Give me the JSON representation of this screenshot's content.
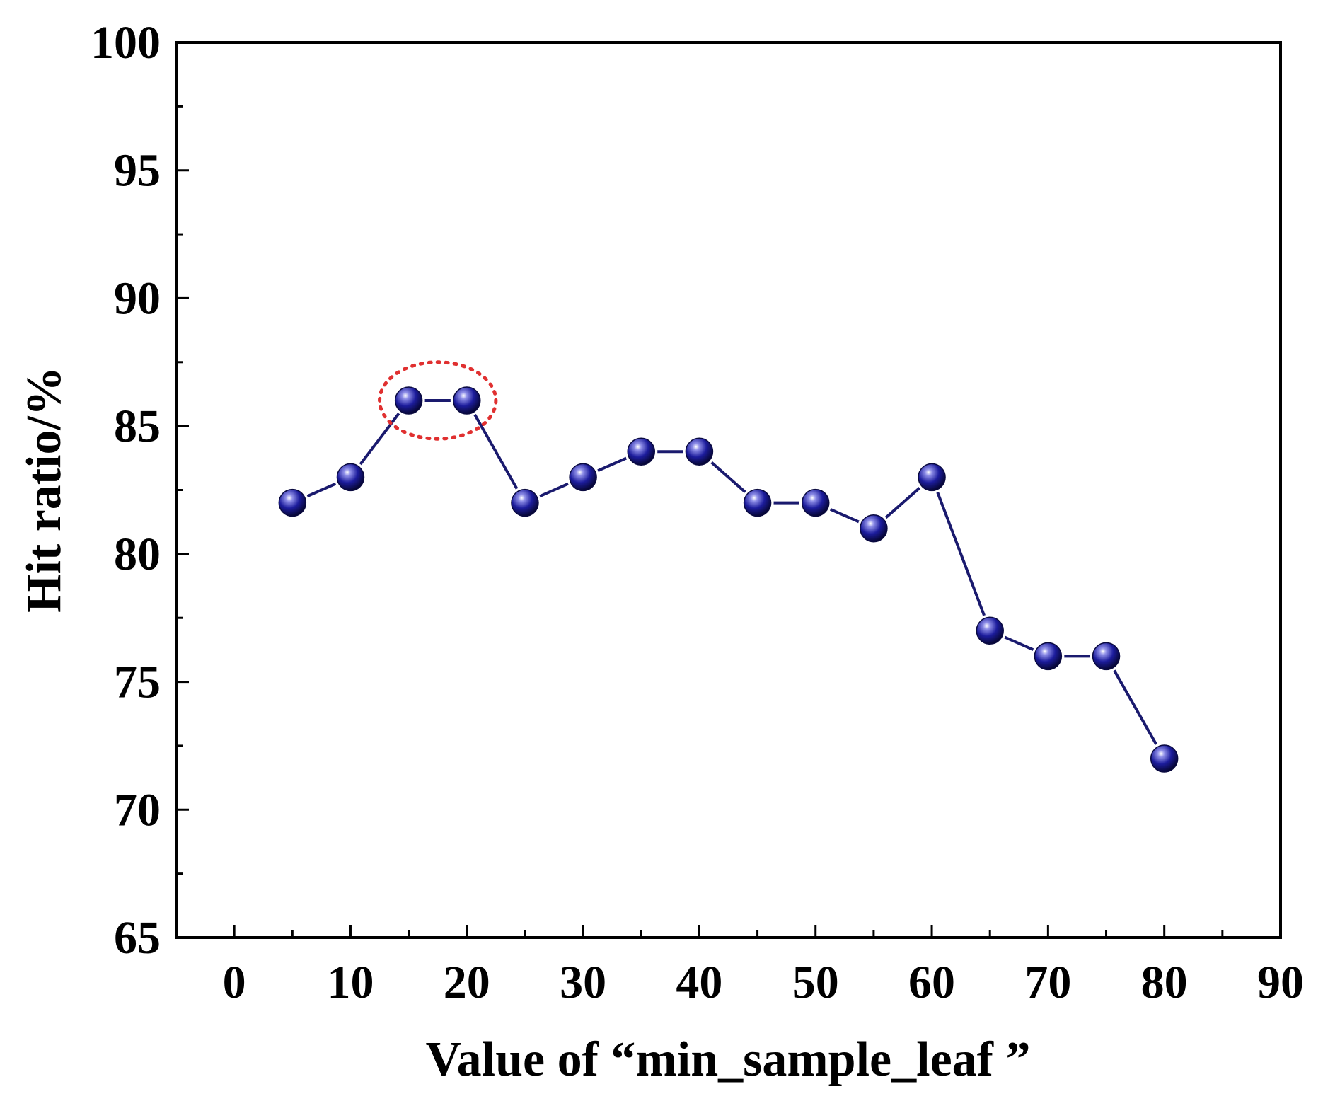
{
  "chart_data": {
    "type": "line",
    "title": "",
    "xlabel": "Value of “min_sample_leaf ”",
    "ylabel": "Hit ratio/%",
    "xlim": [
      -5,
      90
    ],
    "ylim": [
      65,
      100
    ],
    "x_ticks": [
      0,
      10,
      20,
      30,
      40,
      50,
      60,
      70,
      80,
      90
    ],
    "x_tick_labels": [
      "0",
      "10",
      "20",
      "30",
      "40",
      "50",
      "60",
      "70",
      "80",
      "90"
    ],
    "y_ticks": [
      65,
      70,
      75,
      80,
      85,
      90,
      95,
      100
    ],
    "y_tick_labels": [
      "65",
      "70",
      "75",
      "80",
      "85",
      "90",
      "95",
      "100"
    ],
    "grid": false,
    "series": [
      {
        "name": "Hit ratio",
        "color": "#1a1a6e",
        "marker_color": "#1c1c9c",
        "x": [
          5,
          10,
          15,
          20,
          25,
          30,
          35,
          40,
          45,
          50,
          55,
          60,
          65,
          70,
          75,
          80
        ],
        "values": [
          82,
          83,
          86,
          86,
          82,
          83,
          84,
          84,
          82,
          82,
          81,
          83,
          77,
          76,
          76,
          72
        ]
      }
    ],
    "annotations": [
      {
        "type": "dotted-ellipse",
        "color": "#e03030",
        "x_range": [
          12.5,
          22.5
        ],
        "y_range": [
          84.5,
          87.5
        ]
      }
    ]
  }
}
